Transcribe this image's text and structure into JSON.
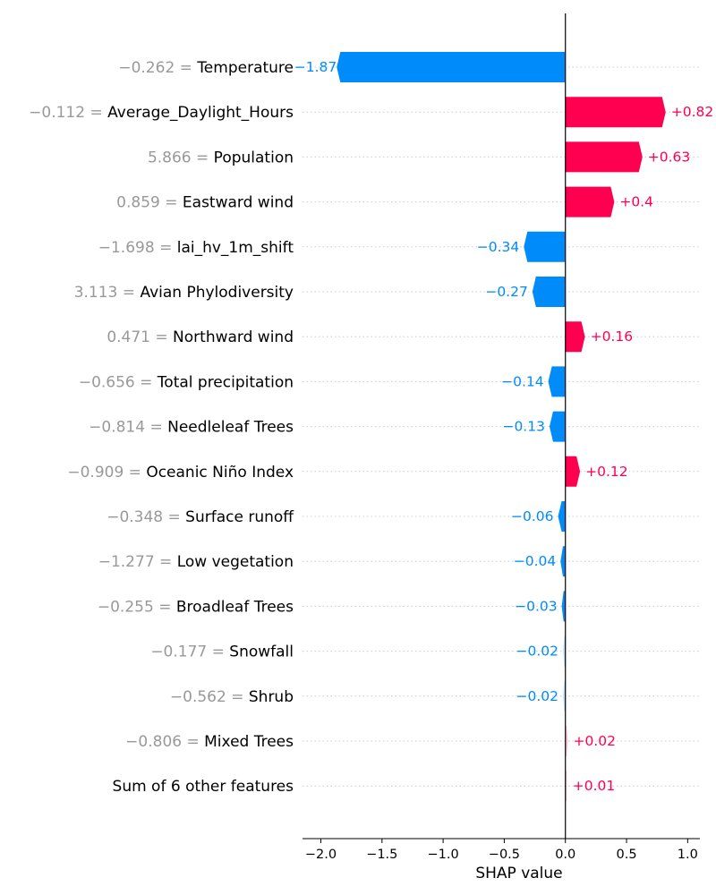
{
  "chart_data": {
    "type": "bar",
    "orientation": "horizontal",
    "xlabel": "SHAP value",
    "xlim": [
      -2.15,
      1.1
    ],
    "xticks": [
      -2.0,
      -1.5,
      -1.0,
      -0.5,
      0.0,
      0.5,
      1.0
    ],
    "xtick_labels": [
      "−2.0",
      "−1.5",
      "−1.0",
      "−0.5",
      "0.0",
      "0.5",
      "1.0"
    ],
    "grid": "horizontal dotted",
    "colors": {
      "positive": "#ff0051",
      "negative": "#008bfb",
      "positive_small": "#ffc3d5",
      "negative_small": "#c3e3fe"
    },
    "rows": [
      {
        "feature_value": "−0.262",
        "feature": "Temperature",
        "shap": -1.87,
        "label": "−1.87"
      },
      {
        "feature_value": "−0.112",
        "feature": "Average_Daylight_Hours",
        "shap": 0.82,
        "label": "+0.82"
      },
      {
        "feature_value": "5.866",
        "feature": "Population",
        "shap": 0.63,
        "label": "+0.63"
      },
      {
        "feature_value": "0.859",
        "feature": "Eastward wind",
        "shap": 0.4,
        "label": "+0.4"
      },
      {
        "feature_value": "−1.698",
        "feature": "lai_hv_1m_shift",
        "shap": -0.34,
        "label": "−0.34"
      },
      {
        "feature_value": "3.113",
        "feature": "Avian Phylodiversity",
        "shap": -0.27,
        "label": "−0.27"
      },
      {
        "feature_value": "0.471",
        "feature": "Northward wind",
        "shap": 0.16,
        "label": "+0.16"
      },
      {
        "feature_value": "−0.656",
        "feature": "Total precipitation",
        "shap": -0.14,
        "label": "−0.14"
      },
      {
        "feature_value": "−0.814",
        "feature": "Needleleaf Trees",
        "shap": -0.13,
        "label": "−0.13"
      },
      {
        "feature_value": "−0.909",
        "feature": "Oceanic Niño Index",
        "shap": 0.12,
        "label": "+0.12"
      },
      {
        "feature_value": "−0.348",
        "feature": "Surface runoff",
        "shap": -0.06,
        "label": "−0.06"
      },
      {
        "feature_value": "−1.277",
        "feature": "Low vegetation",
        "shap": -0.04,
        "label": "−0.04"
      },
      {
        "feature_value": "−0.255",
        "feature": "Broadleaf Trees",
        "shap": -0.03,
        "label": "−0.03"
      },
      {
        "feature_value": "−0.177",
        "feature": "Snowfall",
        "shap": -0.02,
        "label": "−0.02"
      },
      {
        "feature_value": "−0.562",
        "feature": "Shrub",
        "shap": -0.02,
        "label": "−0.02"
      },
      {
        "feature_value": "−0.806",
        "feature": "Mixed Trees",
        "shap": 0.02,
        "label": "+0.02"
      },
      {
        "feature_value": "",
        "feature": "Sum of 6 other features",
        "shap": 0.01,
        "label": "+0.01"
      }
    ]
  }
}
